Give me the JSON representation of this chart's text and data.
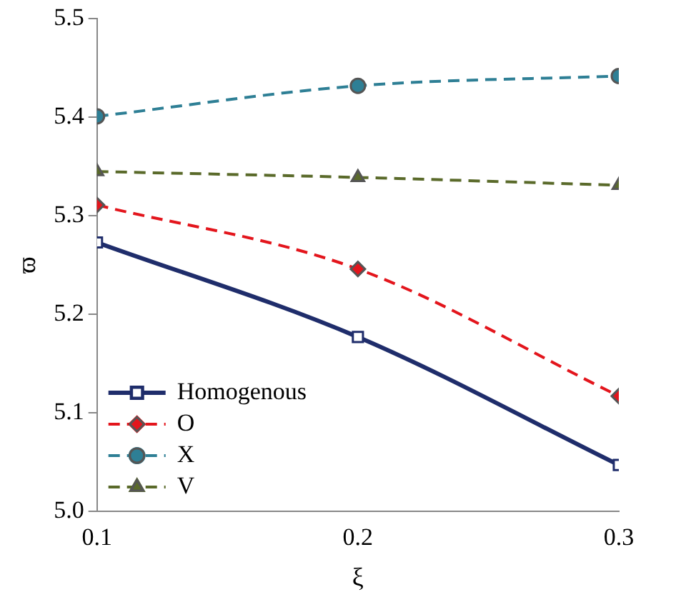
{
  "chart_data": {
    "type": "line",
    "xlabel": "ξ",
    "ylabel": "ϖ",
    "x": [
      0.1,
      0.2,
      0.3
    ],
    "xlim": [
      0.1,
      0.3
    ],
    "xticks": [
      0.1,
      0.2,
      0.3
    ],
    "ylim": [
      5.0,
      5.5
    ],
    "yticks": [
      {
        "value": 5,
        "label": "5.0"
      },
      5.1,
      5.2,
      5.3,
      5.4,
      5.5
    ],
    "grid": false,
    "legend": "bottom left",
    "series": [
      {
        "name": "Homogenous",
        "color": "#1f2d6b",
        "values": [
          5.273,
          5.177,
          5.047
        ],
        "marker": "square",
        "line_style": "solid"
      },
      {
        "name": "O",
        "color": "#e3151c",
        "values": [
          5.311,
          5.246,
          5.117
        ],
        "marker": "diamond",
        "line_style": "dashed"
      },
      {
        "name": "X",
        "color": "#2e7f95",
        "values": [
          5.401,
          5.432,
          5.442
        ],
        "marker": "circle",
        "line_style": "dashed"
      },
      {
        "name": "V",
        "color": "#5a6a2a",
        "values": [
          5.345,
          5.339,
          5.331
        ],
        "marker": "triangle",
        "line_style": "dashed"
      }
    ]
  }
}
